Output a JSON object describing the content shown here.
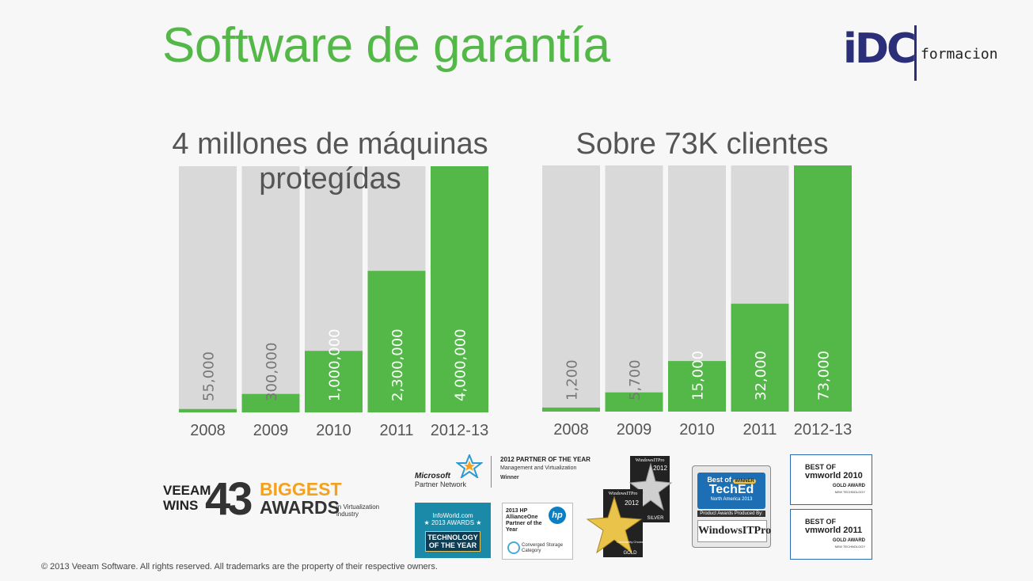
{
  "slide": {
    "title": "Software de garantía",
    "footer": "© 2013 Veeam Software. All rights reserved. All trademarks are the property of their respective owners."
  },
  "logo": {
    "mark": "iDC",
    "sub": "formacion"
  },
  "colors": {
    "accent": "#54b848",
    "track": "#d9d9d9",
    "label_on_track": "#777777",
    "label_on_fill": "#ffffff"
  },
  "chart_data": [
    {
      "type": "bar",
      "title": "4 millones de máquinas protegídas",
      "categories": [
        "2008",
        "2009",
        "2010",
        "2011",
        "2012-13"
      ],
      "values": [
        55000,
        300000,
        1000000,
        2300000,
        4000000
      ],
      "data_labels": [
        "55,000",
        "300,000",
        "1,000,000",
        "2,300,000",
        "4,000,000"
      ],
      "ylim": [
        0,
        4000000
      ],
      "grid": false
    },
    {
      "type": "bar",
      "title": "Sobre 73K clientes",
      "categories": [
        "2008",
        "2009",
        "2010",
        "2011",
        "2012-13"
      ],
      "values": [
        1200,
        5700,
        15000,
        32000,
        73000
      ],
      "data_labels": [
        "1,200",
        "5,700",
        "15,000",
        "32,000",
        "73,000"
      ],
      "ylim": [
        0,
        73000
      ],
      "grid": false
    }
  ],
  "awards": {
    "veeam_wins": [
      "VEEAM",
      "WINS"
    ],
    "count": "43",
    "biggest": "BIGGEST",
    "awards": "AWARDS",
    "industry": "in Virtualization industry",
    "microsoft": {
      "brand": "Microsoft",
      "network": "Partner Network",
      "line1": "2012 PARTNER OF THE YEAR",
      "line2": "Management and Virtualization",
      "line3": "Winner"
    },
    "infoworld": {
      "line1": "InfoWorld.com",
      "line2": "★ 2013 AWARDS ★",
      "badge": "TECHNOLOGY OF THE YEAR"
    },
    "hp": {
      "title": "2013 HP AllianceOne Partner of the Year",
      "logo": "hp",
      "category": "Converged Storage Category"
    },
    "windows_it_pro": {
      "brand": "WindowsITPro",
      "year": "2012",
      "silver": "SILVER",
      "gold": "GOLD",
      "choice": "Community Choice"
    },
    "teched": {
      "best": "Best of",
      "winner": "WINNER",
      "name": "TechEd",
      "region": "North America 2013",
      "produced": "Product Awards Produced By:",
      "sponsor": "WindowsITPro"
    },
    "vmworld": [
      {
        "header": "BEST OF",
        "name": "vmworld 2010",
        "award": "GOLD AWARD",
        "note": "NEW TECHNOLOGY"
      },
      {
        "header": "BEST OF",
        "name": "vmworld 2011",
        "award": "GOLD AWARD",
        "note": "NEW TECHNOLOGY"
      }
    ]
  }
}
